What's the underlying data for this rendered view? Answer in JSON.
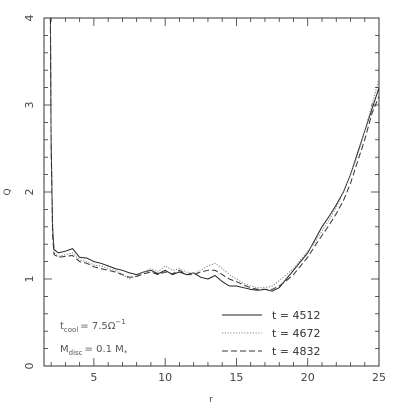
{
  "chart_data": {
    "type": "line",
    "title": "",
    "xlabel": "r",
    "ylabel": "Q",
    "xlim": [
      1.5,
      25
    ],
    "ylim": [
      0,
      4
    ],
    "xticks": [
      5,
      10,
      15,
      20,
      25
    ],
    "yticks": [
      0,
      1,
      2,
      3,
      4
    ],
    "grid": false,
    "legend": "bottom-right",
    "annotations": {
      "tcool": {
        "base": "t",
        "sub": "cool",
        "rest": "= 7.5Ω",
        "sup": "−1"
      },
      "mdisc": {
        "base": "M",
        "sub": "disc",
        "rest": "= 0.1 M",
        "sub2": "*"
      }
    },
    "series": [
      {
        "name": "t = 4512",
        "style": "solid",
        "x": [
          1.95,
          2.0,
          2.1,
          2.2,
          2.5,
          3.0,
          3.5,
          4.0,
          4.5,
          5.0,
          5.5,
          6.0,
          6.5,
          7.0,
          7.5,
          8.0,
          8.5,
          9.0,
          9.5,
          10.0,
          10.5,
          11.0,
          11.5,
          12.0,
          12.5,
          13.0,
          13.5,
          14.0,
          14.5,
          15.0,
          15.5,
          16.0,
          16.5,
          17.0,
          17.5,
          18.0,
          18.5,
          19.0,
          19.5,
          20.0,
          20.5,
          21.0,
          21.5,
          22.0,
          22.5,
          23.0,
          23.5,
          24.0,
          24.5,
          25.0
        ],
        "values": [
          4.0,
          2.6,
          1.6,
          1.34,
          1.3,
          1.32,
          1.35,
          1.25,
          1.24,
          1.2,
          1.18,
          1.15,
          1.12,
          1.1,
          1.07,
          1.05,
          1.08,
          1.1,
          1.06,
          1.1,
          1.05,
          1.08,
          1.05,
          1.07,
          1.02,
          1.0,
          1.04,
          0.97,
          0.92,
          0.92,
          0.9,
          0.88,
          0.87,
          0.88,
          0.86,
          0.9,
          1.0,
          1.1,
          1.2,
          1.3,
          1.45,
          1.6,
          1.72,
          1.85,
          2.0,
          2.2,
          2.45,
          2.7,
          2.95,
          3.2
        ]
      },
      {
        "name": "t = 4672",
        "style": "dotted",
        "x": [
          1.95,
          2.0,
          2.1,
          2.2,
          2.5,
          3.0,
          3.5,
          4.0,
          4.5,
          5.0,
          5.5,
          6.0,
          6.5,
          7.0,
          7.5,
          8.0,
          8.5,
          9.0,
          9.5,
          10.0,
          10.5,
          11.0,
          11.5,
          12.0,
          12.5,
          13.0,
          13.5,
          14.0,
          14.5,
          15.0,
          15.5,
          16.0,
          16.5,
          17.0,
          17.5,
          18.0,
          18.5,
          19.0,
          19.5,
          20.0,
          20.5,
          21.0,
          21.5,
          22.0,
          22.5,
          23.0,
          23.5,
          24.0,
          24.5,
          25.0
        ],
        "values": [
          4.0,
          2.5,
          1.55,
          1.3,
          1.26,
          1.28,
          1.3,
          1.22,
          1.2,
          1.16,
          1.15,
          1.12,
          1.1,
          1.05,
          1.0,
          1.04,
          1.08,
          1.12,
          1.08,
          1.15,
          1.1,
          1.12,
          1.08,
          1.06,
          1.1,
          1.15,
          1.18,
          1.12,
          1.05,
          1.0,
          0.95,
          0.92,
          0.9,
          0.9,
          0.92,
          0.98,
          1.05,
          1.12,
          1.22,
          1.32,
          1.42,
          1.55,
          1.68,
          1.82,
          2.0,
          2.2,
          2.42,
          2.7,
          3.0,
          3.3
        ]
      },
      {
        "name": "t = 4832",
        "style": "dashed",
        "x": [
          1.95,
          2.0,
          2.1,
          2.2,
          2.5,
          3.0,
          3.5,
          4.0,
          4.5,
          5.0,
          5.5,
          6.0,
          6.5,
          7.0,
          7.5,
          8.0,
          8.5,
          9.0,
          9.5,
          10.0,
          10.5,
          11.0,
          11.5,
          12.0,
          12.5,
          13.0,
          13.5,
          14.0,
          14.5,
          15.0,
          15.5,
          16.0,
          16.5,
          17.0,
          17.5,
          18.0,
          18.5,
          19.0,
          19.5,
          20.0,
          20.5,
          21.0,
          21.5,
          22.0,
          22.5,
          23.0,
          23.5,
          24.0,
          24.5,
          25.0
        ],
        "values": [
          4.0,
          2.55,
          1.5,
          1.28,
          1.25,
          1.26,
          1.27,
          1.2,
          1.18,
          1.14,
          1.12,
          1.1,
          1.08,
          1.05,
          1.02,
          1.03,
          1.06,
          1.08,
          1.05,
          1.08,
          1.06,
          1.1,
          1.05,
          1.05,
          1.08,
          1.1,
          1.1,
          1.05,
          1.0,
          0.97,
          0.93,
          0.9,
          0.88,
          0.88,
          0.88,
          0.92,
          0.98,
          1.05,
          1.15,
          1.25,
          1.38,
          1.5,
          1.62,
          1.75,
          1.9,
          2.1,
          2.35,
          2.6,
          2.9,
          3.1
        ]
      }
    ]
  }
}
